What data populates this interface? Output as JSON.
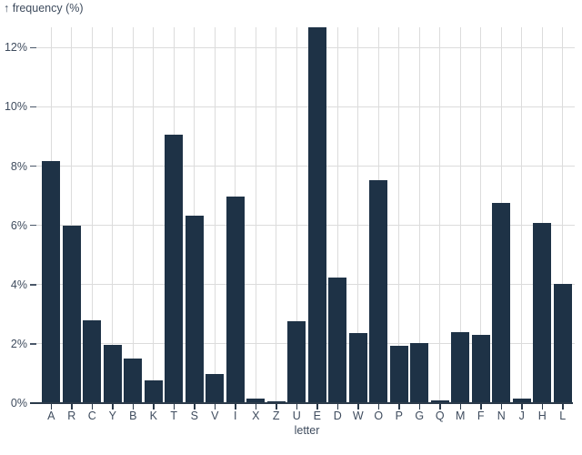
{
  "chart_data": {
    "type": "bar",
    "title": "↑ frequency (%)",
    "xlabel": "letter",
    "ylabel": "frequency (%)",
    "categories": [
      "A",
      "R",
      "C",
      "Y",
      "B",
      "K",
      "T",
      "S",
      "V",
      "I",
      "X",
      "Z",
      "U",
      "E",
      "D",
      "W",
      "O",
      "P",
      "G",
      "Q",
      "M",
      "F",
      "N",
      "J",
      "H",
      "L"
    ],
    "values": [
      8.17,
      5.99,
      2.78,
      1.97,
      1.49,
      0.77,
      9.06,
      6.33,
      0.98,
      6.97,
      0.15,
      0.07,
      2.76,
      12.7,
      4.25,
      2.36,
      7.51,
      1.93,
      2.02,
      0.1,
      2.41,
      2.29,
      6.75,
      0.15,
      6.09,
      4.03
    ],
    "y_ticks": [
      0,
      2,
      4,
      6,
      8,
      10,
      12
    ],
    "y_tick_suffix": "%",
    "ylim": [
      0,
      12.7
    ],
    "grid": true,
    "legend": "none",
    "bar_color": "#1e3246",
    "axis_text_color": "#3f4c5e",
    "grid_color": "#dcdcdc",
    "baseline_color": "#2b3a4a"
  }
}
